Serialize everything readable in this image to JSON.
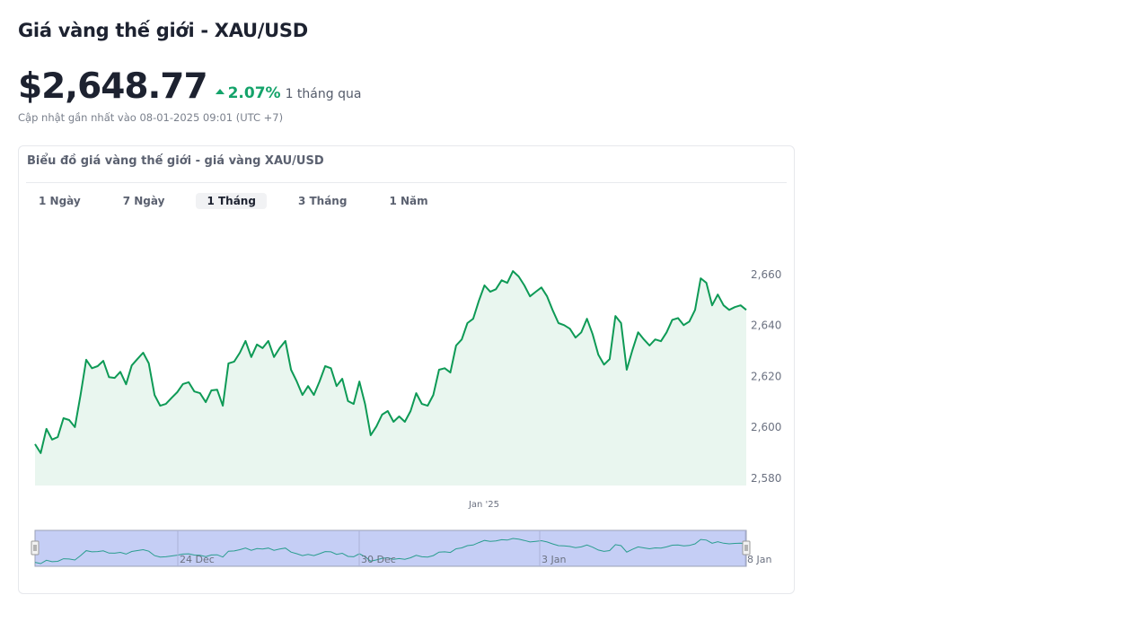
{
  "header": {
    "title": "Giá vàng thế giới - XAU/USD",
    "price": "$2,648.77",
    "change": "2.07%",
    "period": "1 tháng qua",
    "updated": "Cập nhật gần nhất vào 08-01-2025 09:01 (UTC +7)"
  },
  "card": {
    "title": "Biểu đồ giá vàng thế giới - giá vàng XAU/USD",
    "tabs": [
      {
        "label": "1 Ngày"
      },
      {
        "label": "7 Ngày"
      },
      {
        "label": "1 Tháng",
        "active": true
      },
      {
        "label": "3 Tháng"
      },
      {
        "label": "1 Năm"
      }
    ]
  },
  "colors": {
    "line": "#0e9a56",
    "fill": "#e9f6ef",
    "up": "#14a36a",
    "navigator": "#c5cef5"
  },
  "chart_data": {
    "type": "area",
    "title": "",
    "ylim": [
      2580,
      2665
    ],
    "yticks": [
      "2,580",
      "2,600",
      "2,620",
      "2,640",
      "2,660"
    ],
    "ytick_values": [
      2580,
      2600,
      2620,
      2640,
      2660
    ],
    "xticks": [
      "Jan '25"
    ],
    "navigator_ticks": [
      "24 Dec",
      "30 Dec",
      "3 Jan",
      "8 Jan"
    ],
    "grid": false,
    "values": [
      2593.4,
      2589.9,
      2599.4,
      2595.2,
      2596.2,
      2603.6,
      2602.9,
      2600.1,
      2612.7,
      2626.5,
      2623.2,
      2624,
      2626.1,
      2619.7,
      2619.4,
      2621.8,
      2616.9,
      2624.3,
      2626.8,
      2629.3,
      2625.1,
      2612.7,
      2608.5,
      2609.2,
      2611.6,
      2613.8,
      2617,
      2617.7,
      2614.1,
      2613.4,
      2609.9,
      2614.5,
      2614.8,
      2608.5,
      2625.1,
      2625.8,
      2629.3,
      2633.9,
      2627.6,
      2632.5,
      2631.1,
      2633.9,
      2627.6,
      2631.1,
      2633.9,
      2622.6,
      2618,
      2612.7,
      2616.2,
      2612.7,
      2618,
      2624,
      2623.2,
      2616.2,
      2619.1,
      2610.3,
      2609.2,
      2618,
      2609.2,
      2596.9,
      2600.4,
      2605,
      2606.4,
      2602.2,
      2604.3,
      2602.2,
      2606.4,
      2613.4,
      2609.2,
      2608.5,
      2612.7,
      2622.6,
      2623.2,
      2621.5,
      2632.1,
      2634.5,
      2640.9,
      2642.6,
      2649.6,
      2655.7,
      2653.2,
      2654.2,
      2657.7,
      2656.7,
      2661.3,
      2659.2,
      2655.7,
      2651.4,
      2653.2,
      2654.9,
      2651.4,
      2645.8,
      2640.9,
      2640.1,
      2638.7,
      2635.2,
      2637.3,
      2642.6,
      2636.6,
      2628.5,
      2624.6,
      2626.8,
      2643.7,
      2640.9,
      2622.6,
      2630.4,
      2637.3,
      2634.5,
      2632.1,
      2634.5,
      2633.8,
      2637.3,
      2642.2,
      2642.9,
      2640.1,
      2641.5,
      2646.1,
      2658.5,
      2656.7,
      2647.9,
      2652.1,
      2647.9,
      2646.1,
      2647.2,
      2647.9,
      2646.1
    ]
  }
}
